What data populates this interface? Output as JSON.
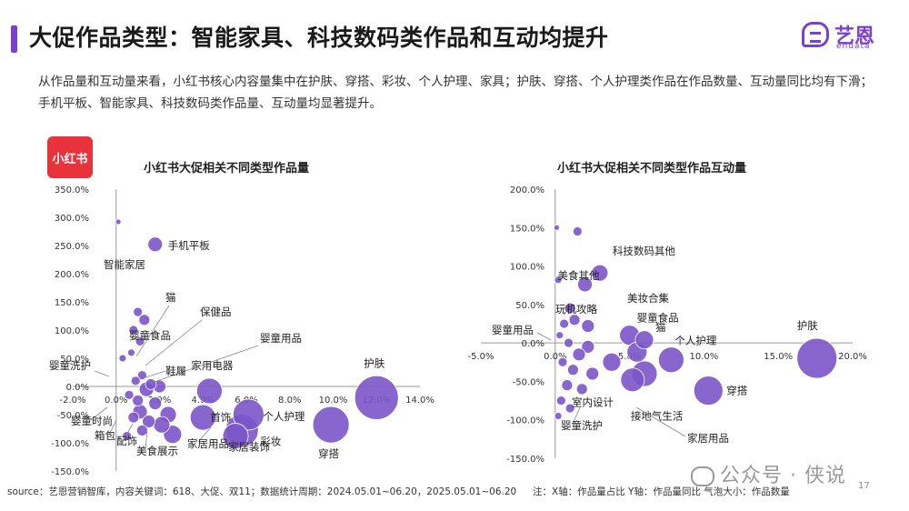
{
  "header": {
    "title": "大促作品类型：智能家具、科技数码类作品和互动均提升",
    "logo_cn": "艺恩",
    "logo_en": "endata"
  },
  "intro_text": "从作品量和互动量来看，小红书核心内容量集中在护肤、穿搭、彩妆、个人护理、家具；护肤、穿搭、个人护理类作品在作品数量、互动量同比均有下滑；手机平板、智能家具、科技数码类作品量、互动量均显著提升。",
  "badge": {
    "label": "小红书"
  },
  "colors": {
    "accent": "#7b3fd1",
    "bubble": "#7b55c9",
    "badge": "#e8323c"
  },
  "chart_data": [
    {
      "type": "scatter",
      "title": "小红书大促相关不同类型作品量",
      "xlim": [
        -2.0,
        14.0
      ],
      "ylim": [
        -150.0,
        350.0
      ],
      "x_ticks": [
        "-2.0%",
        "0.0%",
        "2.0%",
        "4.0%",
        "6.0%",
        "8.0%",
        "10.0%",
        "12.0%",
        "14.0%"
      ],
      "y_ticks": [
        "350.0%",
        "300.0%",
        "250.0%",
        "200.0%",
        "150.0%",
        "100.0%",
        "50.0%",
        "0.0%",
        "-50.0%",
        "-100.0%",
        "-150.0%"
      ],
      "points": [
        {
          "x": 0.1,
          "y": 292,
          "size": 3,
          "label": ""
        },
        {
          "x": 1.8,
          "y": 252,
          "size": 8,
          "label": "手机平板"
        },
        {
          "x": 1.0,
          "y": 132,
          "size": 5,
          "label": ""
        },
        {
          "x": 1.3,
          "y": 118,
          "size": 6,
          "label": ""
        },
        {
          "x": 0.8,
          "y": 100,
          "size": 5,
          "label": ""
        },
        {
          "x": 1.1,
          "y": 80,
          "size": 5,
          "label": ""
        },
        {
          "x": 0.7,
          "y": 60,
          "size": 4,
          "label": ""
        },
        {
          "x": 0.3,
          "y": 50,
          "size": 4,
          "label": ""
        },
        {
          "x": 1.2,
          "y": 20,
          "size": 5,
          "label": ""
        },
        {
          "x": 0.9,
          "y": 10,
          "size": 5,
          "label": ""
        },
        {
          "x": 1.6,
          "y": 4,
          "size": 6,
          "label": ""
        },
        {
          "x": 2.0,
          "y": 0,
          "size": 7,
          "label": ""
        },
        {
          "x": 1.4,
          "y": -5,
          "size": 8,
          "label": ""
        },
        {
          "x": 0.6,
          "y": -15,
          "size": 5,
          "label": ""
        },
        {
          "x": 1.0,
          "y": -25,
          "size": 6,
          "label": ""
        },
        {
          "x": 1.8,
          "y": -30,
          "size": 7,
          "label": ""
        },
        {
          "x": 1.1,
          "y": -45,
          "size": 8,
          "label": ""
        },
        {
          "x": 2.4,
          "y": -50,
          "size": 9,
          "label": ""
        },
        {
          "x": 0.8,
          "y": -55,
          "size": 6,
          "label": ""
        },
        {
          "x": 1.5,
          "y": -62,
          "size": 7,
          "label": ""
        },
        {
          "x": 2.1,
          "y": -68,
          "size": 9,
          "label": ""
        },
        {
          "x": 1.2,
          "y": -78,
          "size": 6,
          "label": ""
        },
        {
          "x": 2.6,
          "y": -85,
          "size": 10,
          "label": ""
        },
        {
          "x": 0.5,
          "y": -88,
          "size": 5,
          "label": ""
        },
        {
          "x": 4.3,
          "y": -8,
          "size": 14,
          "label": "家用电器"
        },
        {
          "x": 4.0,
          "y": -55,
          "size": 14,
          "label": "首饰"
        },
        {
          "x": 5.5,
          "y": -88,
          "size": 14,
          "label": "家居装饰"
        },
        {
          "x": 6.1,
          "y": -50,
          "size": 17,
          "label": "个人护理"
        },
        {
          "x": 5.8,
          "y": -78,
          "size": 18,
          "label": "彩妆"
        },
        {
          "x": 9.9,
          "y": -68,
          "size": 20,
          "label": "穿搭"
        },
        {
          "x": 12.0,
          "y": -20,
          "size": 24,
          "label": "护肤"
        }
      ],
      "callouts": [
        {
          "text": "智能家居"
        },
        {
          "text": "猫"
        },
        {
          "text": "保健品"
        },
        {
          "text": "婴童食品"
        },
        {
          "text": "婴童用品"
        },
        {
          "text": "婴童洗护"
        },
        {
          "text": "鞋履"
        },
        {
          "text": "婴童时尚"
        },
        {
          "text": "箱包"
        },
        {
          "text": "配饰"
        },
        {
          "text": "美食展示"
        },
        {
          "text": "家居用品"
        }
      ]
    },
    {
      "type": "scatter",
      "title": "小红书大促相关不同类型作品互动量",
      "xlim": [
        -5.0,
        20.0
      ],
      "ylim": [
        -150.0,
        200.0
      ],
      "x_ticks": [
        "-5.0%",
        "0.0%",
        "5.0%",
        "10.0%",
        "15.0%",
        "20.0%"
      ],
      "y_ticks": [
        "200.0%",
        "150.0%",
        "100.0%",
        "50.0%",
        "0.0%",
        "-50.0%",
        "-100.0%",
        "-150.0%"
      ],
      "points": [
        {
          "x": 0.1,
          "y": 150,
          "size": 3,
          "label": ""
        },
        {
          "x": 1.5,
          "y": 145,
          "size": 5,
          "label": ""
        },
        {
          "x": 0.2,
          "y": 82,
          "size": 4,
          "label": ""
        },
        {
          "x": 3.0,
          "y": 91,
          "size": 9,
          "label": "科技数码其他"
        },
        {
          "x": 2.0,
          "y": 76,
          "size": 8,
          "label": "美食其他"
        },
        {
          "x": 1.0,
          "y": 45,
          "size": 6,
          "label": ""
        },
        {
          "x": 0.6,
          "y": 25,
          "size": 5,
          "label": ""
        },
        {
          "x": 1.3,
          "y": 30,
          "size": 6,
          "label": ""
        },
        {
          "x": 2.2,
          "y": 22,
          "size": 7,
          "label": ""
        },
        {
          "x": 0.3,
          "y": 10,
          "size": 4,
          "label": ""
        },
        {
          "x": 0.9,
          "y": 0,
          "size": 5,
          "label": ""
        },
        {
          "x": 2.2,
          "y": -5,
          "size": 7,
          "label": ""
        },
        {
          "x": 1.6,
          "y": -15,
          "size": 7,
          "label": ""
        },
        {
          "x": 0.5,
          "y": -25,
          "size": 5,
          "label": ""
        },
        {
          "x": 1.2,
          "y": -35,
          "size": 6,
          "label": ""
        },
        {
          "x": 2.5,
          "y": -40,
          "size": 7,
          "label": ""
        },
        {
          "x": 0.8,
          "y": -55,
          "size": 6,
          "label": ""
        },
        {
          "x": 1.8,
          "y": -60,
          "size": 6,
          "label": ""
        },
        {
          "x": 0.4,
          "y": -75,
          "size": 5,
          "label": ""
        },
        {
          "x": 1.0,
          "y": -85,
          "size": 5,
          "label": ""
        },
        {
          "x": 0.2,
          "y": -95,
          "size": 4,
          "label": ""
        },
        {
          "x": 5.0,
          "y": 10,
          "size": 11,
          "label": "婴童食品"
        },
        {
          "x": 6.0,
          "y": 4,
          "size": 10,
          "label": "猫"
        },
        {
          "x": 3.8,
          "y": -25,
          "size": 10,
          "label": "室内设计"
        },
        {
          "x": 5.5,
          "y": -12,
          "size": 11,
          "label": ""
        },
        {
          "x": 5.2,
          "y": -48,
          "size": 13,
          "label": "接地气生活"
        },
        {
          "x": 6.0,
          "y": -40,
          "size": 14,
          "label": ""
        },
        {
          "x": 7.8,
          "y": -22,
          "size": 14,
          "label": "个人护理"
        },
        {
          "x": 10.3,
          "y": -62,
          "size": 16,
          "label": "穿搭"
        },
        {
          "x": 17.6,
          "y": -20,
          "size": 22,
          "label": "护肤"
        }
      ],
      "callouts": [
        {
          "text": "美妆合集"
        },
        {
          "text": "玩机攻略"
        },
        {
          "text": "婴童用品"
        },
        {
          "text": "婴童洗护"
        },
        {
          "text": "家居用品"
        }
      ]
    }
  ],
  "footer": {
    "source": "source：艺恩营销智库，内容关键词：618、大促、双11；数据统计周期：2024.05.01~06.20，2025.05.01~06.20",
    "note": "注：X轴：作品量占比   Y轴：作品量同比   气泡大小：作品数量",
    "watermark": "公众号 · 侠说",
    "page": "17"
  }
}
